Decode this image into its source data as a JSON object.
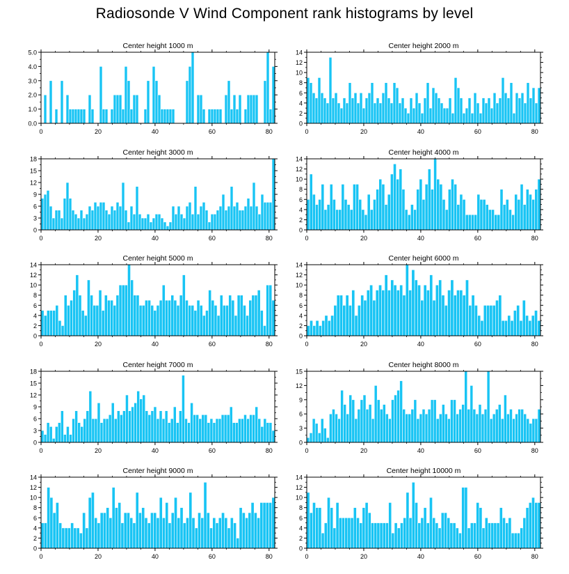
{
  "page": {
    "title": "Radiosonde V Wind Component rank histograms by level"
  },
  "style": {
    "bar_color": "#18c4f4",
    "bar_edge": "#ffffff",
    "axis_color": "#000000"
  },
  "chart_data": [
    {
      "type": "bar",
      "title": "Center height 1000 m",
      "xlim": [
        0,
        82
      ],
      "ylim": [
        0,
        5
      ],
      "yticks": [
        0,
        1,
        2,
        3,
        4,
        5
      ],
      "ytick_labels": [
        "0.0",
        "1.0",
        "2.0",
        "3.0",
        "4.0",
        "5.0"
      ],
      "xticks": [
        0,
        20,
        40,
        60,
        80
      ],
      "xtick_labels": [
        "0",
        "20",
        "40",
        "60",
        "80"
      ],
      "values": [
        0,
        2,
        0,
        3,
        0,
        1,
        0,
        3,
        0,
        2,
        1,
        1,
        1,
        1,
        1,
        1,
        0,
        2,
        1,
        0,
        0,
        4,
        1,
        1,
        0,
        1,
        2,
        2,
        2,
        1,
        4,
        3,
        1,
        2,
        2,
        0,
        0,
        1,
        3,
        0,
        4,
        3,
        2,
        1,
        1,
        1,
        1,
        1,
        0,
        0,
        0,
        0,
        3,
        4,
        5,
        0,
        2,
        2,
        1,
        0,
        1,
        1,
        1,
        1,
        1,
        0,
        2,
        3,
        1,
        2,
        1,
        2,
        0,
        1,
        2,
        2,
        2,
        2,
        0,
        0,
        3,
        5,
        1,
        4
      ]
    },
    {
      "type": "bar",
      "title": "Center height 2000 m",
      "xlim": [
        0,
        82
      ],
      "ylim": [
        0,
        14
      ],
      "yticks": [
        0,
        2,
        4,
        6,
        8,
        10,
        12,
        14
      ],
      "ytick_labels": [
        "0",
        "2",
        "4",
        "6",
        "8",
        "10",
        "12",
        "14"
      ],
      "xticks": [
        0,
        20,
        40,
        60,
        80
      ],
      "xtick_labels": [
        "0",
        "20",
        "40",
        "60",
        "80"
      ],
      "values": [
        9,
        8,
        6,
        5,
        9,
        6,
        5,
        4,
        13,
        5,
        6,
        4,
        3,
        5,
        4,
        8,
        5,
        6,
        4,
        6,
        3,
        5,
        6,
        8,
        4,
        5,
        4,
        6,
        8,
        5,
        4,
        8,
        7,
        4,
        5,
        3,
        2,
        5,
        3,
        6,
        4,
        2,
        5,
        8,
        3,
        7,
        6,
        5,
        4,
        3,
        3,
        5,
        2,
        9,
        7,
        5,
        2,
        3,
        5,
        2,
        6,
        4,
        2,
        5,
        4,
        5,
        3,
        6,
        4,
        5,
        9,
        6,
        5,
        8,
        2,
        6,
        5,
        6,
        4,
        8,
        5,
        7,
        4,
        7
      ]
    },
    {
      "type": "bar",
      "title": "Center height 3000 m",
      "xlim": [
        0,
        82
      ],
      "ylim": [
        0,
        18
      ],
      "yticks": [
        0,
        3,
        6,
        9,
        12,
        15,
        18
      ],
      "ytick_labels": [
        "0",
        "3",
        "6",
        "9",
        "12",
        "15",
        "18"
      ],
      "xticks": [
        0,
        20,
        40,
        60,
        80
      ],
      "xtick_labels": [
        "0",
        "20",
        "40",
        "60",
        "80"
      ],
      "values": [
        8,
        9,
        10,
        6,
        3,
        5,
        5,
        3,
        8,
        12,
        8,
        5,
        4,
        3,
        5,
        3,
        4,
        6,
        5,
        7,
        6,
        7,
        7,
        5,
        4,
        6,
        5,
        7,
        6,
        12,
        5,
        2,
        6,
        4,
        11,
        4,
        3,
        3,
        4,
        2,
        3,
        4,
        4,
        3,
        2,
        1,
        2,
        6,
        4,
        6,
        4,
        3,
        6,
        7,
        4,
        11,
        4,
        6,
        7,
        5,
        2,
        4,
        4,
        5,
        6,
        9,
        5,
        6,
        11,
        6,
        7,
        5,
        5,
        6,
        8,
        6,
        12,
        6,
        4,
        9,
        7,
        7,
        7,
        18
      ]
    },
    {
      "type": "bar",
      "title": "Center height 4000 m",
      "xlim": [
        0,
        82
      ],
      "ylim": [
        0,
        14
      ],
      "yticks": [
        0,
        2,
        4,
        6,
        8,
        10,
        12,
        14
      ],
      "ytick_labels": [
        "0",
        "2",
        "4",
        "6",
        "8",
        "10",
        "12",
        "14"
      ],
      "xticks": [
        0,
        20,
        40,
        60,
        80
      ],
      "xtick_labels": [
        "0",
        "20",
        "40",
        "60",
        "80"
      ],
      "values": [
        6,
        11,
        7,
        5,
        6,
        9,
        4,
        5,
        9,
        6,
        4,
        4,
        9,
        6,
        5,
        4,
        9,
        9,
        6,
        4,
        3,
        7,
        4,
        6,
        8,
        10,
        9,
        5,
        7,
        11,
        13,
        10,
        12,
        8,
        4,
        3,
        5,
        4,
        8,
        10,
        6,
        9,
        12,
        8,
        14,
        10,
        9,
        6,
        4,
        8,
        10,
        9,
        5,
        7,
        6,
        3,
        3,
        3,
        3,
        7,
        6,
        6,
        5,
        4,
        4,
        3,
        3,
        8,
        5,
        6,
        4,
        3,
        7,
        6,
        9,
        5,
        8,
        7,
        6,
        8,
        10
      ]
    },
    {
      "type": "bar",
      "title": "Center height 5000 m",
      "xlim": [
        0,
        82
      ],
      "ylim": [
        0,
        14
      ],
      "yticks": [
        0,
        2,
        4,
        6,
        8,
        10,
        12,
        14
      ],
      "ytick_labels": [
        "0",
        "2",
        "4",
        "6",
        "8",
        "10",
        "12",
        "14"
      ],
      "xticks": [
        0,
        20,
        40,
        60,
        80
      ],
      "xtick_labels": [
        "0",
        "20",
        "40",
        "60",
        "80"
      ],
      "values": [
        5,
        4,
        5,
        5,
        5,
        6,
        3,
        2,
        8,
        6,
        7,
        9,
        12,
        8,
        5,
        4,
        11,
        8,
        6,
        6,
        9,
        5,
        8,
        7,
        7,
        6,
        8,
        10,
        10,
        10,
        14,
        11,
        8,
        8,
        6,
        6,
        7,
        7,
        6,
        5,
        6,
        7,
        10,
        7,
        7,
        8,
        7,
        6,
        8,
        12,
        7,
        6,
        6,
        5,
        7,
        6,
        4,
        5,
        9,
        7,
        6,
        4,
        8,
        6,
        6,
        8,
        7,
        4,
        8,
        8,
        6,
        4,
        7,
        8,
        8,
        9,
        5,
        2,
        10,
        10,
        7
      ]
    },
    {
      "type": "bar",
      "title": "Center height 6000 m",
      "xlim": [
        0,
        82
      ],
      "ylim": [
        0,
        14
      ],
      "yticks": [
        0,
        2,
        4,
        6,
        8,
        10,
        12,
        14
      ],
      "ytick_labels": [
        "0",
        "2",
        "4",
        "6",
        "8",
        "10",
        "12",
        "14"
      ],
      "xticks": [
        0,
        20,
        40,
        60,
        80
      ],
      "xtick_labels": [
        "0",
        "20",
        "40",
        "60",
        "80"
      ],
      "values": [
        2,
        3,
        2,
        3,
        2,
        3,
        4,
        3,
        4,
        6,
        8,
        8,
        6,
        8,
        6,
        9,
        4,
        6,
        8,
        7,
        9,
        10,
        7,
        9,
        10,
        9,
        12,
        9,
        11,
        10,
        9,
        10,
        8,
        14,
        9,
        13,
        11,
        10,
        7,
        10,
        9,
        12,
        7,
        10,
        11,
        8,
        6,
        9,
        11,
        8,
        9,
        9,
        8,
        11,
        6,
        8,
        6,
        4,
        3,
        6,
        6,
        6,
        6,
        7,
        8,
        3,
        3,
        4,
        3,
        5,
        6,
        3,
        7,
        4,
        3,
        4,
        5,
        3
      ]
    },
    {
      "type": "bar",
      "title": "Center height 7000 m",
      "xlim": [
        0,
        82
      ],
      "ylim": [
        0,
        18
      ],
      "yticks": [
        0,
        3,
        6,
        9,
        12,
        15,
        18
      ],
      "ytick_labels": [
        "0",
        "3",
        "6",
        "9",
        "12",
        "15",
        "18"
      ],
      "xticks": [
        0,
        20,
        40,
        60,
        80
      ],
      "xtick_labels": [
        "0",
        "20",
        "40",
        "60",
        "80"
      ],
      "values": [
        3,
        2,
        5,
        4,
        1,
        4,
        5,
        8,
        2,
        4,
        2,
        6,
        8,
        5,
        4,
        6,
        8,
        13,
        6,
        6,
        10,
        5,
        6,
        6,
        7,
        10,
        6,
        8,
        7,
        8,
        12,
        8,
        9,
        10,
        13,
        11,
        12,
        8,
        7,
        8,
        9,
        6,
        8,
        6,
        8,
        5,
        6,
        9,
        5,
        8,
        17,
        6,
        5,
        10,
        7,
        7,
        6,
        7,
        7,
        5,
        6,
        5,
        6,
        6,
        7,
        7,
        7,
        9,
        5,
        5,
        6,
        6,
        7,
        6,
        7,
        7,
        9,
        6,
        4,
        6,
        5,
        5,
        3
      ]
    },
    {
      "type": "bar",
      "title": "Center height 8000 m",
      "xlim": [
        0,
        82
      ],
      "ylim": [
        0,
        15
      ],
      "yticks": [
        0,
        3,
        6,
        9,
        12,
        15
      ],
      "ytick_labels": [
        "0",
        "3",
        "6",
        "9",
        "12",
        "15"
      ],
      "xticks": [
        0,
        20,
        40,
        60,
        80
      ],
      "xtick_labels": [
        "0",
        "20",
        "40",
        "60",
        "80"
      ],
      "values": [
        1,
        2,
        5,
        4,
        2,
        5,
        3,
        1,
        6,
        7,
        6,
        5,
        11,
        8,
        6,
        10,
        9,
        5,
        7,
        9,
        10,
        7,
        8,
        5,
        12,
        9,
        7,
        8,
        6,
        5,
        9,
        10,
        11,
        13,
        7,
        6,
        6,
        7,
        9,
        5,
        6,
        7,
        6,
        7,
        9,
        9,
        5,
        6,
        8,
        6,
        5,
        9,
        9,
        6,
        7,
        8,
        15,
        7,
        12,
        7,
        6,
        8,
        6,
        7,
        15,
        5,
        6,
        7,
        8,
        5,
        10,
        6,
        7,
        5,
        6,
        7,
        7,
        6,
        5,
        4,
        5,
        5,
        7
      ]
    },
    {
      "type": "bar",
      "title": "Center height 9000 m",
      "xlim": [
        0,
        82
      ],
      "ylim": [
        0,
        14
      ],
      "yticks": [
        0,
        2,
        4,
        6,
        8,
        10,
        12,
        14
      ],
      "ytick_labels": [
        "0",
        "2",
        "4",
        "6",
        "8",
        "10",
        "12",
        "14"
      ],
      "xticks": [
        0,
        20,
        40,
        60,
        80
      ],
      "xtick_labels": [
        "0",
        "20",
        "40",
        "60",
        "80"
      ],
      "values": [
        5,
        5,
        12,
        10,
        7,
        9,
        5,
        4,
        4,
        4,
        5,
        4,
        4,
        3,
        7,
        4,
        10,
        11,
        6,
        5,
        7,
        7,
        8,
        6,
        12,
        8,
        9,
        5,
        7,
        7,
        6,
        5,
        11,
        7,
        8,
        6,
        5,
        7,
        7,
        6,
        10,
        6,
        9,
        5,
        7,
        10,
        6,
        8,
        5,
        6,
        11,
        6,
        4,
        7,
        6,
        13,
        7,
        4,
        6,
        5,
        6,
        7,
        6,
        4,
        6,
        5,
        2,
        8,
        7,
        6,
        7,
        9,
        7,
        6,
        9,
        9,
        9,
        9,
        10
      ]
    },
    {
      "type": "bar",
      "title": "Center height 10000 m",
      "xlim": [
        0,
        82
      ],
      "ylim": [
        0,
        14
      ],
      "yticks": [
        0,
        2,
        4,
        6,
        8,
        10,
        12,
        14
      ],
      "ytick_labels": [
        "0",
        "2",
        "4",
        "6",
        "8",
        "10",
        "12",
        "14"
      ],
      "xticks": [
        0,
        20,
        40,
        60,
        80
      ],
      "xtick_labels": [
        "0",
        "20",
        "40",
        "60",
        "80"
      ],
      "values": [
        11,
        7,
        9,
        8,
        8,
        3,
        5,
        10,
        8,
        4,
        9,
        6,
        6,
        6,
        6,
        6,
        8,
        6,
        5,
        8,
        9,
        7,
        5,
        5,
        5,
        5,
        5,
        5,
        9,
        3,
        5,
        4,
        5,
        6,
        11,
        6,
        13,
        9,
        5,
        6,
        8,
        5,
        10,
        6,
        5,
        4,
        7,
        7,
        6,
        5,
        5,
        4,
        3,
        12,
        12,
        4,
        5,
        5,
        9,
        8,
        4,
        6,
        5,
        5,
        5,
        5,
        8,
        6,
        5,
        6,
        3,
        3,
        3,
        4,
        6,
        8,
        9,
        10,
        9,
        9
      ]
    }
  ]
}
